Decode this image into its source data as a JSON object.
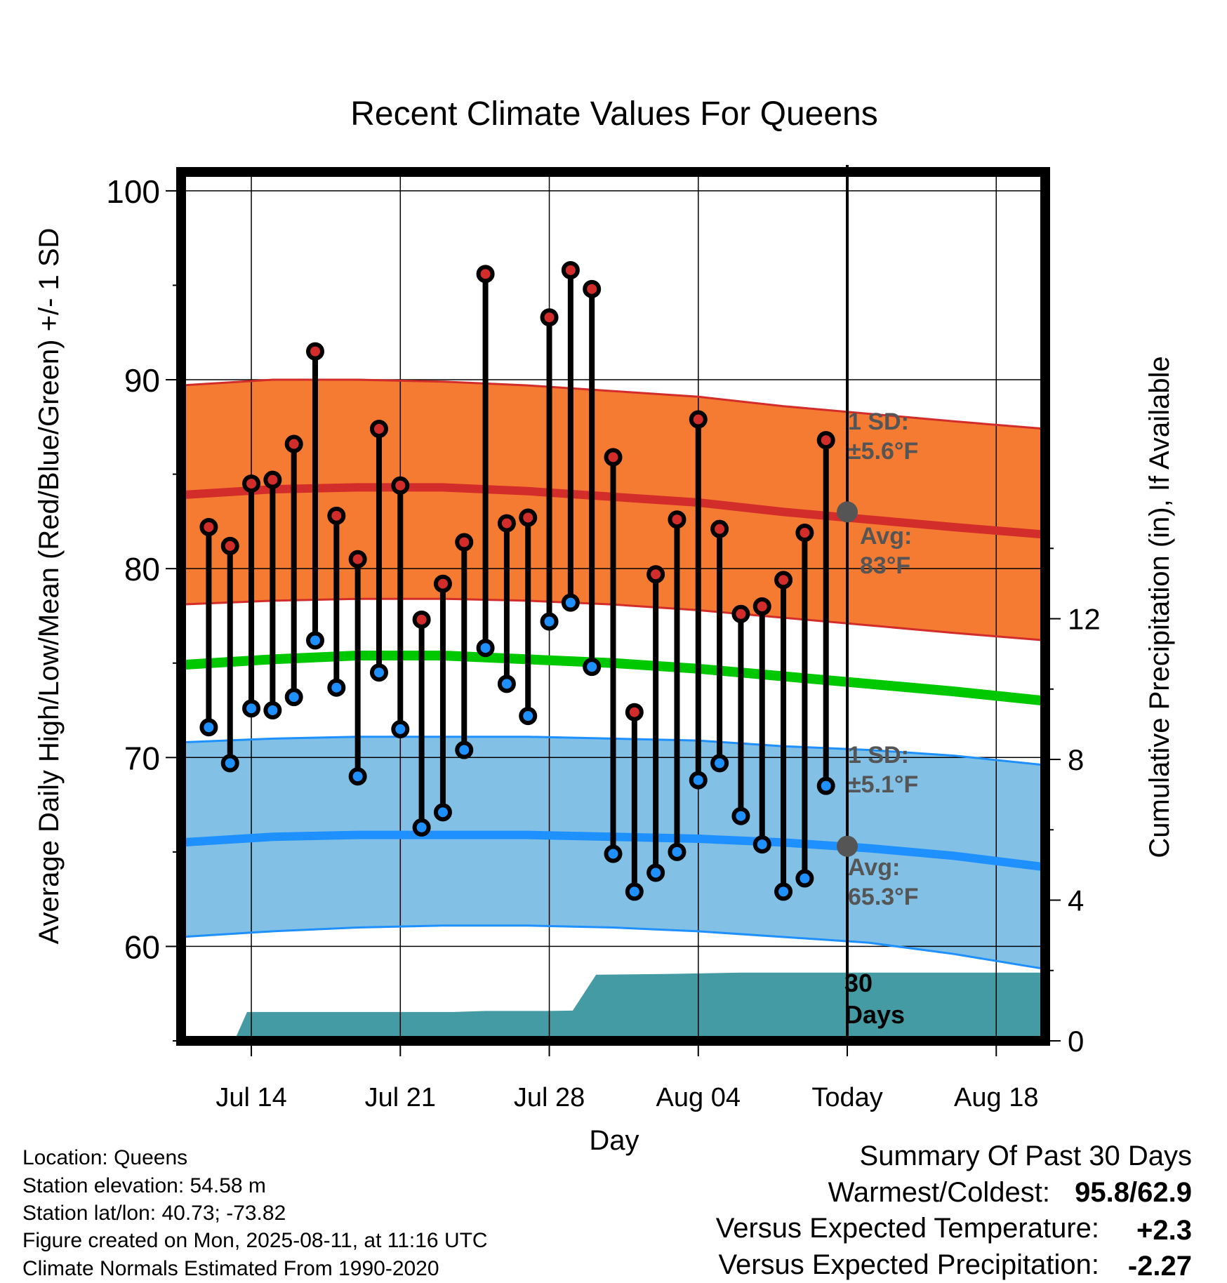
{
  "chart_data": {
    "type": "line",
    "title": "Recent Climate Values For Queens",
    "xlabel": "Day",
    "ylabel": "Average Daily High/Low/Mean (Red/Blue/Green) +/- 1 SD",
    "y2label": "Cumulative Precipitation (in), If Available",
    "ylim": [
      55,
      101
    ],
    "y2lim": [
      0,
      24.7
    ],
    "y_ticks": [
      "60",
      "70",
      "80",
      "90",
      "100"
    ],
    "y2_ticks": [
      "0",
      "4",
      "8",
      "12"
    ],
    "x_ticks": [
      {
        "day": 13.0,
        "label": "Jul 14"
      },
      {
        "day": 20.0,
        "label": "Jul 21"
      },
      {
        "day": 27.0,
        "label": "Jul 28"
      },
      {
        "day": 34.0,
        "label": "Aug 04"
      },
      {
        "day": 41.0,
        "label": "Today"
      },
      {
        "day": 48.0,
        "label": "Aug 18"
      }
    ],
    "x_range": [
      9.7,
      50.3
    ],
    "grid": true,
    "today": 41.0,
    "normals": {
      "x": [
        9.7,
        14,
        18,
        22,
        26,
        30,
        34,
        38,
        42,
        46,
        50.3
      ],
      "high_mean": [
        83.9,
        84.2,
        84.3,
        84.3,
        84.1,
        83.8,
        83.5,
        83.0,
        82.6,
        82.2,
        81.8
      ],
      "high_upper": [
        89.7,
        90.0,
        90.0,
        89.9,
        89.7,
        89.4,
        89.1,
        88.6,
        88.2,
        87.8,
        87.4
      ],
      "high_lower": [
        78.1,
        78.3,
        78.4,
        78.4,
        78.3,
        78.1,
        77.8,
        77.4,
        77.0,
        76.6,
        76.2
      ],
      "mean": [
        74.9,
        75.2,
        75.4,
        75.4,
        75.2,
        75.0,
        74.7,
        74.3,
        73.9,
        73.5,
        73.0
      ],
      "low_mean": [
        65.5,
        65.8,
        65.9,
        65.9,
        65.9,
        65.8,
        65.7,
        65.5,
        65.2,
        64.8,
        64.2
      ],
      "low_upper": [
        70.8,
        71.0,
        71.1,
        71.1,
        71.1,
        71.0,
        70.9,
        70.6,
        70.4,
        70.1,
        69.6
      ],
      "low_lower": [
        60.5,
        60.8,
        61.0,
        61.1,
        61.1,
        61.0,
        60.8,
        60.5,
        60.2,
        59.6,
        58.8
      ]
    },
    "daily": {
      "x": [
        11,
        12,
        13,
        14,
        15,
        16,
        17,
        18,
        19,
        20,
        21,
        22,
        23,
        24,
        25,
        26,
        27,
        28,
        29,
        30,
        31,
        32,
        33,
        34,
        35,
        36,
        37,
        38,
        39,
        40
      ],
      "high": [
        82.2,
        81.2,
        84.5,
        84.7,
        86.6,
        91.5,
        82.8,
        80.5,
        87.4,
        84.4,
        77.3,
        79.2,
        81.4,
        95.6,
        82.4,
        82.7,
        93.3,
        95.8,
        94.8,
        85.9,
        72.4,
        79.7,
        82.6,
        87.9,
        82.1,
        77.6,
        78.0,
        79.4,
        81.9,
        86.8
      ],
      "low": [
        71.6,
        69.7,
        72.6,
        72.5,
        73.2,
        76.2,
        73.7,
        69.0,
        74.5,
        71.5,
        66.3,
        67.1,
        70.4,
        75.8,
        73.9,
        72.2,
        77.2,
        78.2,
        74.8,
        64.9,
        62.9,
        63.9,
        65.0,
        68.8,
        69.7,
        66.9,
        65.4,
        62.9,
        63.6,
        68.5
      ]
    },
    "precip": {
      "x": [
        9.7,
        12.2,
        12.8,
        19,
        20,
        22.5,
        24,
        27,
        28.1,
        29.2,
        32.4,
        36,
        41,
        50.3
      ],
      "y": [
        0,
        0,
        0.82,
        0.82,
        0.82,
        0.82,
        0.85,
        0.85,
        0.86,
        1.88,
        1.9,
        1.94,
        1.94,
        1.94
      ]
    },
    "annotations": {
      "high_sd": [
        "1 SD:",
        "±5.6°F"
      ],
      "high_avg": [
        "Avg:",
        "83°F"
      ],
      "low_sd": [
        "1 SD:",
        "±5.1°F"
      ],
      "low_avg": [
        "Avg:",
        "65.3°F"
      ],
      "days": [
        "30",
        "Days"
      ]
    },
    "today_markers": {
      "high": 83.0,
      "low": 65.3
    },
    "colors": {
      "high_band": "#f47b31",
      "high_line": "#d22d2a",
      "mean_line": "#00c800",
      "low_band": "#82c0e6",
      "low_line": "#1e90ff",
      "precip": "#459ba3",
      "high_dot": "#d22d2a",
      "low_dot": "#1e90ff",
      "annotation": "#555555"
    }
  },
  "footer": {
    "info": [
      "Location: Queens",
      "Station elevation: 54.58 m",
      "Station lat/lon: 40.73; -73.82",
      "Figure created on Mon, 2025-08-11, at 11:16 UTC",
      "Climate Normals Estimated From 1990-2020"
    ]
  },
  "summary": {
    "title": "Summary Of Past 30 Days",
    "warm_label": "Warmest/Coldest:",
    "warm_value": "95.8/62.9",
    "temp_label": "Versus Expected Temperature:",
    "temp_value": "+2.3",
    "temp_color": "#d22d2a",
    "precip_label": "Versus Expected Precipitation:",
    "precip_value": "-2.27",
    "precip_color": "#a0522d"
  }
}
